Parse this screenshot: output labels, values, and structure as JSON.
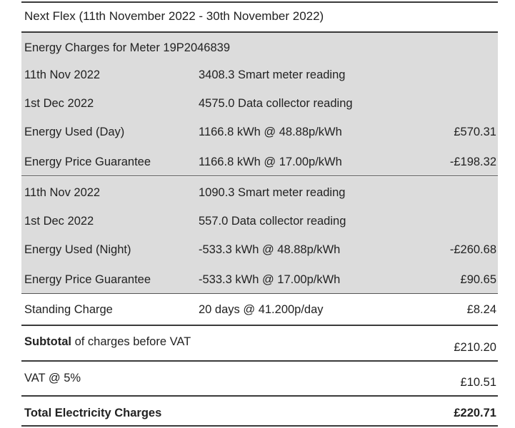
{
  "header": {
    "title": "Next Flex (11th November 2022 - 30th November 2022)"
  },
  "meter": {
    "heading": "Energy Charges for Meter 19P2046839"
  },
  "day_block": [
    {
      "label": "11th Nov 2022",
      "detail": "3408.3 Smart meter reading",
      "amount": ""
    },
    {
      "label": "1st Dec 2022",
      "detail": "4575.0 Data collector reading",
      "amount": ""
    },
    {
      "label": "Energy Used (Day)",
      "detail": "1166.8 kWh @ 48.88p/kWh",
      "amount": "£570.31"
    },
    {
      "label": "Energy Price Guarantee",
      "detail": "1166.8 kWh @ 17.00p/kWh",
      "amount": "-£198.32"
    }
  ],
  "night_block": [
    {
      "label": "11th Nov 2022",
      "detail": "1090.3 Smart meter reading",
      "amount": ""
    },
    {
      "label": "1st Dec 2022",
      "detail": "557.0 Data collector reading",
      "amount": ""
    },
    {
      "label": "Energy Used (Night)",
      "detail": "-533.3 kWh @ 48.88p/kWh",
      "amount": "-£260.68"
    },
    {
      "label": "Energy Price Guarantee",
      "detail": "-533.3 kWh @ 17.00p/kWh",
      "amount": "£90.65"
    }
  ],
  "standing": {
    "label": "Standing Charge",
    "detail": "20 days @ 41.200p/day",
    "amount": "£8.24"
  },
  "subtotal": {
    "label_bold": "Subtotal",
    "label_rest": " of charges before VAT",
    "amount": "£210.20"
  },
  "vat": {
    "label": "VAT @ 5%",
    "amount": "£10.51"
  },
  "total": {
    "label": "Total Electricity Charges",
    "amount": "£220.71"
  }
}
